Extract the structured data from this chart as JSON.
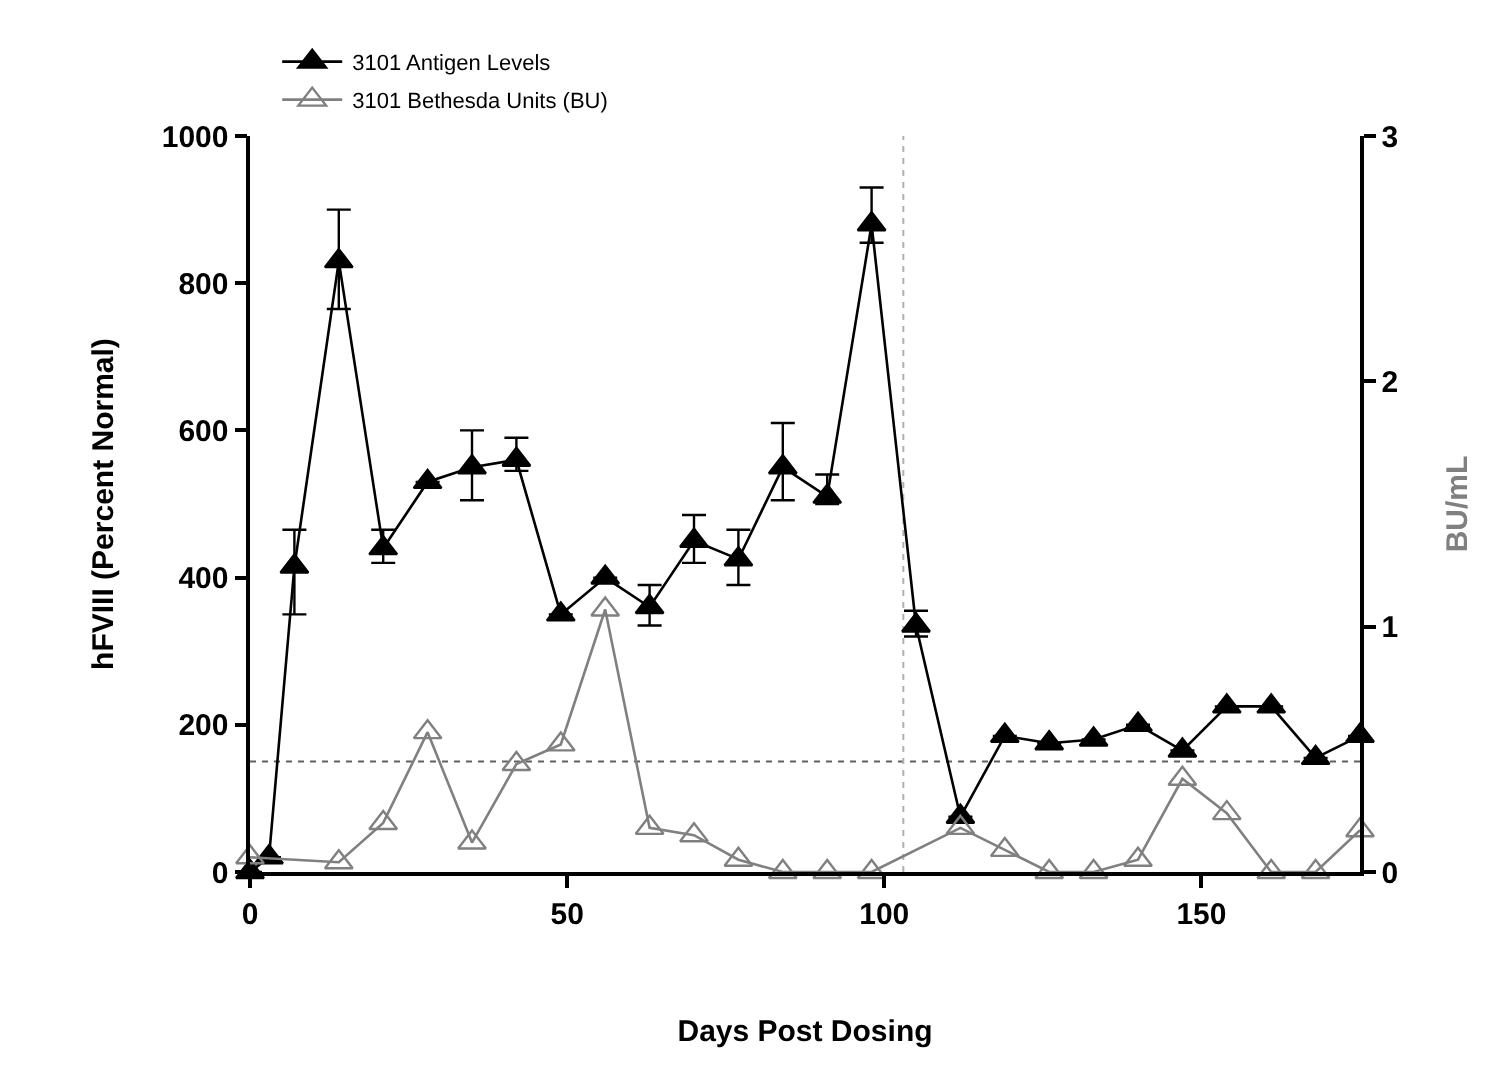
{
  "chart_data": {
    "type": "line",
    "xlabel": "Days Post Dosing",
    "ylabel": "hFVIII (Percent Normal)",
    "y2label": "BU/mL",
    "xlim": [
      0,
      175
    ],
    "xticks": [
      0,
      50,
      100,
      150
    ],
    "ylim": [
      0,
      1000
    ],
    "yticks": [
      0,
      200,
      400,
      600,
      800,
      1000
    ],
    "y2lim": [
      0,
      3
    ],
    "y2ticks": [
      0,
      1,
      2,
      3
    ],
    "grid": false,
    "legend": "top left",
    "marker": "triangle",
    "line_style": "solid",
    "series": [
      {
        "name": "3101 Antigen Levels",
        "color": "#000000",
        "x": [
          0,
          3,
          7,
          14,
          21,
          28,
          35,
          42,
          49,
          56,
          63,
          70,
          77,
          84,
          91,
          98,
          105,
          112,
          119,
          126,
          133,
          140,
          147,
          154,
          161,
          168,
          175
        ],
        "values": [
          0,
          20,
          415,
          830,
          440,
          530,
          550,
          560,
          350,
          400,
          360,
          450,
          425,
          550,
          510,
          880,
          335,
          75,
          185,
          175,
          180,
          200,
          165,
          225,
          225,
          155,
          185
        ],
        "errors": [
          null,
          null,
          [
            350,
            465
          ],
          [
            765,
            900
          ],
          [
            420,
            465
          ],
          null,
          [
            505,
            600
          ],
          [
            545,
            590
          ],
          null,
          null,
          [
            335,
            390
          ],
          [
            420,
            485
          ],
          [
            390,
            465
          ],
          [
            505,
            610
          ],
          [
            500,
            540
          ],
          [
            855,
            930
          ],
          [
            320,
            355
          ],
          null,
          null,
          null,
          null,
          null,
          null,
          null,
          null,
          null,
          null
        ]
      },
      {
        "name": "3101 Bethesda Units (BU)",
        "color": "#808080",
        "axis": "y2",
        "x": [
          0,
          14,
          21,
          28,
          35,
          42,
          49,
          56,
          63,
          70,
          77,
          84,
          91,
          98,
          112,
          119,
          126,
          133,
          140,
          147,
          154,
          161,
          168,
          175
        ],
        "values": [
          0.06,
          0.04,
          0.2,
          0.57,
          0.12,
          0.44,
          0.52,
          1.07,
          0.18,
          0.15,
          0.05,
          0,
          0,
          0,
          0.18,
          0.09,
          0,
          0,
          0.05,
          0.38,
          0.24,
          0,
          0,
          0.17
        ]
      }
    ],
    "ref_lines": [
      {
        "axis": "y",
        "value": 150,
        "color": "#606060",
        "line_style": "dotted"
      },
      {
        "axis": "x",
        "value": 103,
        "color": "#b0b0b0",
        "line_style": "dotted"
      }
    ]
  }
}
